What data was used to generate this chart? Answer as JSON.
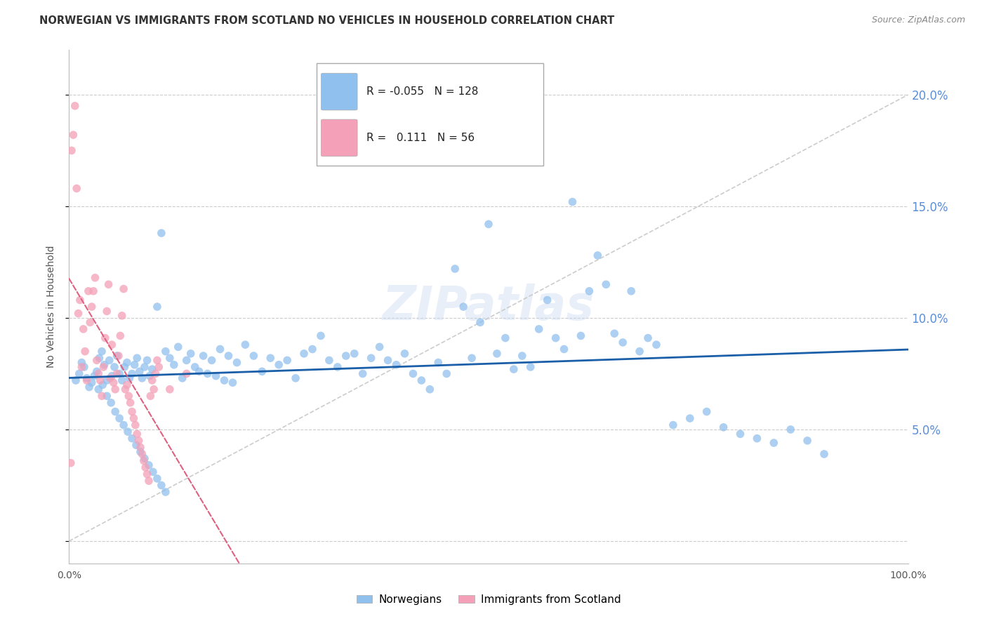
{
  "title": "NORWEGIAN VS IMMIGRANTS FROM SCOTLAND NO VEHICLES IN HOUSEHOLD CORRELATION CHART",
  "source": "Source: ZipAtlas.com",
  "ylabel": "No Vehicles in Household",
  "xlim": [
    0.0,
    100.0
  ],
  "ylim": [
    -1.0,
    22.0
  ],
  "norwegian_color": "#90c0ee",
  "scotland_color": "#f4a0b8",
  "trend_norwegian_color": "#1a5fa8",
  "trend_scotland_color": "#e06080",
  "diagonal_color": "#cccccc",
  "R_norwegian": -0.055,
  "N_norwegian": 128,
  "R_scotland": 0.111,
  "N_scotland": 56,
  "background_color": "#ffffff",
  "grid_color": "#cccccc",
  "watermark": "ZIPatlas",
  "norwegian_points_x": [
    0.8,
    1.2,
    1.5,
    1.8,
    2.1,
    2.4,
    2.7,
    3.0,
    3.3,
    3.6,
    3.9,
    4.2,
    4.5,
    4.8,
    5.1,
    5.4,
    5.7,
    6.0,
    6.3,
    6.6,
    6.9,
    7.2,
    7.5,
    7.8,
    8.1,
    8.4,
    8.7,
    9.0,
    9.3,
    9.6,
    9.9,
    10.5,
    11.0,
    11.5,
    12.0,
    12.5,
    13.0,
    13.5,
    14.0,
    14.5,
    15.0,
    15.5,
    16.0,
    16.5,
    17.0,
    17.5,
    18.0,
    18.5,
    19.0,
    19.5,
    20.0,
    21.0,
    22.0,
    23.0,
    24.0,
    25.0,
    26.0,
    27.0,
    28.0,
    29.0,
    30.0,
    31.0,
    32.0,
    33.0,
    34.0,
    35.0,
    36.0,
    37.0,
    38.0,
    39.0,
    40.0,
    41.0,
    42.0,
    43.0,
    44.0,
    45.0,
    46.0,
    47.0,
    48.0,
    49.0,
    50.0,
    51.0,
    52.0,
    53.0,
    54.0,
    55.0,
    56.0,
    57.0,
    58.0,
    59.0,
    60.0,
    61.0,
    62.0,
    63.0,
    64.0,
    65.0,
    66.0,
    67.0,
    68.0,
    69.0,
    70.0,
    72.0,
    74.0,
    76.0,
    78.0,
    80.0,
    82.0,
    84.0,
    86.0,
    88.0,
    90.0,
    3.5,
    4.0,
    4.5,
    5.0,
    5.5,
    6.0,
    6.5,
    7.0,
    7.5,
    8.0,
    8.5,
    9.0,
    9.5,
    10.0,
    10.5,
    11.0,
    11.5
  ],
  "norwegian_points_y": [
    7.2,
    7.5,
    8.0,
    7.8,
    7.3,
    6.9,
    7.1,
    7.4,
    7.6,
    8.2,
    8.5,
    7.9,
    7.2,
    8.1,
    7.4,
    7.8,
    8.3,
    7.5,
    7.2,
    7.8,
    8.0,
    7.3,
    7.5,
    7.9,
    8.2,
    7.6,
    7.3,
    7.8,
    8.1,
    7.4,
    7.7,
    10.5,
    13.8,
    8.5,
    8.2,
    7.9,
    8.7,
    7.3,
    8.1,
    8.4,
    7.8,
    7.6,
    8.3,
    7.5,
    8.1,
    7.4,
    8.6,
    7.2,
    8.3,
    7.1,
    8.0,
    8.8,
    8.3,
    7.6,
    8.2,
    7.9,
    8.1,
    7.3,
    8.4,
    8.6,
    9.2,
    8.1,
    7.8,
    8.3,
    8.4,
    7.5,
    8.2,
    8.7,
    8.1,
    7.9,
    8.4,
    7.5,
    7.2,
    6.8,
    8.0,
    7.5,
    12.2,
    10.5,
    8.2,
    9.8,
    14.2,
    8.4,
    9.1,
    7.7,
    8.3,
    7.8,
    9.5,
    10.8,
    9.1,
    8.6,
    15.2,
    9.2,
    11.2,
    12.8,
    11.5,
    9.3,
    8.9,
    11.2,
    8.5,
    9.1,
    8.8,
    5.2,
    5.5,
    5.8,
    5.1,
    4.8,
    4.6,
    4.4,
    5.0,
    4.5,
    3.9,
    6.8,
    7.0,
    6.5,
    6.2,
    5.8,
    5.5,
    5.2,
    4.9,
    4.6,
    4.3,
    4.0,
    3.7,
    3.4,
    3.1,
    2.8,
    2.5,
    2.2
  ],
  "scotland_points_x": [
    0.2,
    0.3,
    0.5,
    0.7,
    0.9,
    1.1,
    1.3,
    1.5,
    1.7,
    1.9,
    2.1,
    2.3,
    2.5,
    2.7,
    2.9,
    3.1,
    3.3,
    3.5,
    3.7,
    3.9,
    4.1,
    4.3,
    4.5,
    4.7,
    4.9,
    5.1,
    5.3,
    5.5,
    5.7,
    5.9,
    6.1,
    6.3,
    6.5,
    6.7,
    6.9,
    7.1,
    7.3,
    7.5,
    7.7,
    7.9,
    8.1,
    8.3,
    8.5,
    8.7,
    8.9,
    9.1,
    9.3,
    9.5,
    9.7,
    9.9,
    10.1,
    10.3,
    10.5,
    10.7,
    12.0,
    14.0
  ],
  "scotland_points_y": [
    3.5,
    17.5,
    18.2,
    19.5,
    15.8,
    10.2,
    10.8,
    7.8,
    9.5,
    8.5,
    7.2,
    11.2,
    9.8,
    10.5,
    11.2,
    11.8,
    8.1,
    7.5,
    7.2,
    6.5,
    7.8,
    9.1,
    10.3,
    11.5,
    7.3,
    8.8,
    7.1,
    6.8,
    7.5,
    8.3,
    9.2,
    10.1,
    11.3,
    6.8,
    7.0,
    6.5,
    6.2,
    5.8,
    5.5,
    5.2,
    4.8,
    4.5,
    4.2,
    3.9,
    3.6,
    3.3,
    3.0,
    2.7,
    6.5,
    7.2,
    6.8,
    7.5,
    8.1,
    7.8,
    6.8,
    7.5
  ],
  "norwegian_dot_size": 70,
  "scotland_dot_size": 70,
  "right_ytick_color": "#5b8ed6",
  "title_fontsize": 11,
  "label_fontsize": 10
}
